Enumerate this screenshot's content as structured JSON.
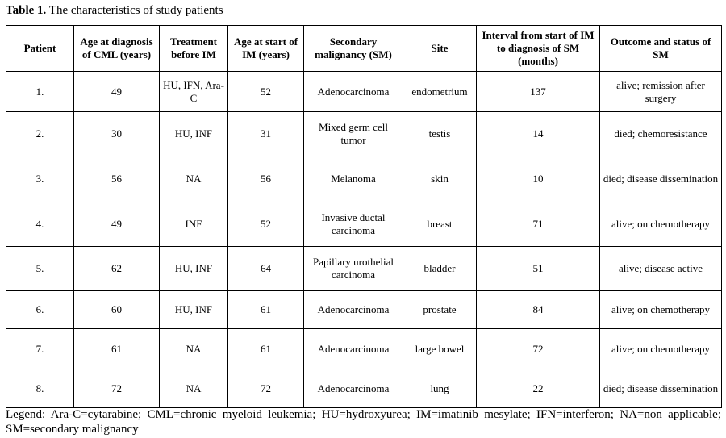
{
  "caption": {
    "label": "Table 1.",
    "text": " The characteristics of study patients"
  },
  "headers": [
    "Patient",
    "Age at diagnosis of CML (years)",
    "Treatment before IM",
    "Age at start of IM (years)",
    "Secondary malignancy (SM)",
    "Site",
    "Interval from start of IM to diagnosis of SM (months)",
    "Outcome and status of SM"
  ],
  "rows": [
    [
      "1.",
      "49",
      "HU, IFN, Ara-C",
      "52",
      "Adenocarcinoma",
      "endometrium",
      "137",
      "alive; remission after surgery"
    ],
    [
      "2.",
      "30",
      "HU, INF",
      "31",
      "Mixed germ cell tumor",
      "testis",
      "14",
      "died; chemoresistance"
    ],
    [
      "3.",
      "56",
      "NA",
      "56",
      "Melanoma",
      "skin",
      "10",
      "died; disease dissemination"
    ],
    [
      "4.",
      "49",
      "INF",
      "52",
      "Invasive ductal carcinoma",
      "breast",
      "71",
      "alive; on chemotherapy"
    ],
    [
      "5.",
      "62",
      "HU, INF",
      "64",
      "Papillary urothelial carcinoma",
      "bladder",
      "51",
      "alive; disease active"
    ],
    [
      "6.",
      "60",
      "HU, INF",
      "61",
      "Adenocarcinoma",
      "prostate",
      "84",
      "alive; on chemotherapy"
    ],
    [
      "7.",
      "61",
      "NA",
      "61",
      "Adenocarcinoma",
      "large bowel",
      "72",
      "alive; on chemotherapy"
    ],
    [
      "8.",
      "72",
      "NA",
      "72",
      "Adenocarcinoma",
      "lung",
      "22",
      "died; disease dissemination"
    ]
  ],
  "legend": "Legend: Ara-C=cytarabine; CML=chronic myeloid leukemia; HU=hydroxyurea; IM=imatinib mesylate; IFN=interferon; NA=non applicable; SM=secondary malignancy"
}
